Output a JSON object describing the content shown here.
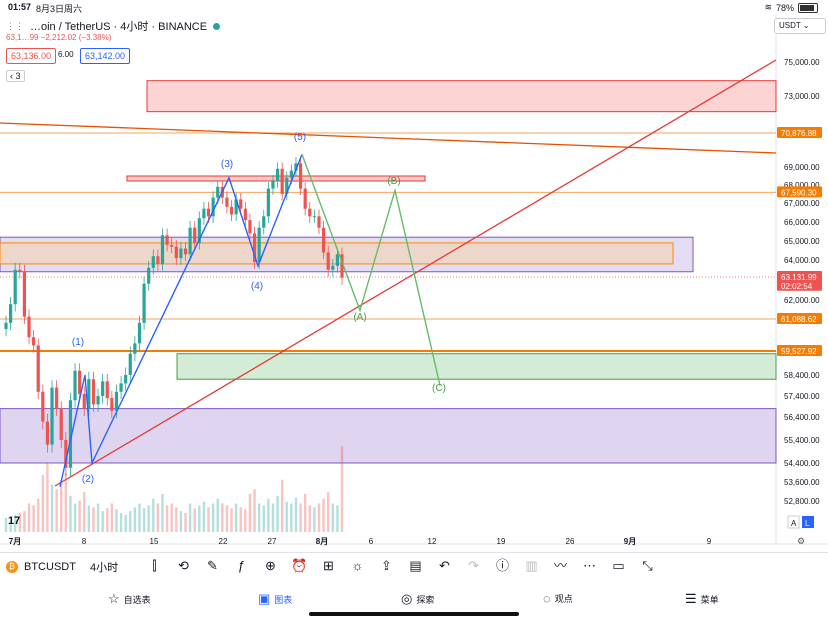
{
  "status": {
    "time": "01:57",
    "date": "8月3日周六",
    "battery": "78%"
  },
  "header": {
    "title": "…oin / TetherUS · 4小时 · BINANCE",
    "quote_line": "63,1…99  −2,212.02 (−3.38%)",
    "bid": "63,136.00",
    "spread": "6.00",
    "ask": "63,142.00",
    "layer_count": "3",
    "currency": "USDT"
  },
  "chart_data": {
    "type": "candlestick",
    "y_range": [
      52300,
      76000
    ],
    "price_ticks": [
      {
        "v": 75000,
        "label": "75,000.00"
      },
      {
        "v": 73000,
        "label": "73,000.00"
      },
      {
        "v": 69000,
        "label": "69,000.00"
      },
      {
        "v": 68000,
        "label": "68,000.00"
      },
      {
        "v": 67000,
        "label": "67,000.00"
      },
      {
        "v": 66000,
        "label": "66,000.00"
      },
      {
        "v": 65000,
        "label": "65,000.00"
      },
      {
        "v": 64000,
        "label": "64,000.00"
      },
      {
        "v": 62000,
        "label": "62,000.00"
      },
      {
        "v": 58400,
        "label": "58,400.00"
      },
      {
        "v": 57400,
        "label": "57,400.00"
      },
      {
        "v": 56400,
        "label": "56,400.00"
      },
      {
        "v": 55400,
        "label": "55,400.00"
      },
      {
        "v": 54400,
        "label": "54,400.00"
      },
      {
        "v": 53600,
        "label": "53,600.00"
      },
      {
        "v": 52800,
        "label": "52,800.00"
      }
    ],
    "price_badges": [
      {
        "v": 70876.88,
        "label": "70,876.88",
        "color": "#f57c00"
      },
      {
        "v": 67590.3,
        "label": "67,590.30",
        "color": "#f57c00"
      },
      {
        "v": 63131.99,
        "label": "63,131.99",
        "color": "#ef5350"
      },
      {
        "v": 62700,
        "label": "02:02:54",
        "color": "#ef5350"
      },
      {
        "v": 61088.62,
        "label": "61,088.62",
        "color": "#f57c00"
      },
      {
        "v": 59527.92,
        "label": "59,527.92",
        "color": "#f57c00"
      }
    ],
    "x_ticks": [
      "7月",
      "8",
      "15",
      "22",
      "27",
      "8月",
      "6",
      "12",
      "19",
      "26",
      "9月",
      "9"
    ],
    "wave_labels": [
      {
        "text": "(1)",
        "color": "#2962ff"
      },
      {
        "text": "(2)",
        "color": "#2962ff"
      },
      {
        "text": "(3)",
        "color": "#2962ff"
      },
      {
        "text": "(4)",
        "color": "#2962ff"
      },
      {
        "text": "(5)",
        "color": "#2962ff"
      },
      {
        "text": "(A)",
        "color": "#43a047"
      },
      {
        "text": "(B)",
        "color": "#43a047"
      },
      {
        "text": "(C)",
        "color": "#43a047"
      }
    ],
    "impulse_wave": [
      [
        60,
        53400
      ],
      [
        85,
        58400
      ],
      [
        92,
        54400
      ],
      [
        229,
        68400
      ],
      [
        258,
        63700
      ],
      [
        302,
        69700
      ]
    ],
    "projection_wave": [
      [
        302,
        69700
      ],
      [
        360,
        61500
      ],
      [
        395,
        67700
      ],
      [
        440,
        57900
      ]
    ],
    "closes": [
      60900,
      61800,
      63500,
      63400,
      61200,
      60200,
      59800,
      57600,
      56200,
      55200,
      57800,
      56800,
      55400,
      54200,
      57200,
      58600,
      57500,
      56800,
      58200,
      57000,
      57400,
      58100,
      57300,
      56700,
      57600,
      58000,
      58400,
      59400,
      59900,
      60900,
      62800,
      63600,
      64200,
      63800,
      65300,
      64800,
      64700,
      64100,
      64600,
      64300,
      65700,
      64900,
      66200,
      66700,
      66300,
      67300,
      67900,
      67300,
      66800,
      66400,
      67200,
      66700,
      66100,
      65400,
      63900,
      65700,
      66300,
      67800,
      68200,
      68900,
      67500,
      68400,
      68800,
      69200,
      67800,
      66700,
      66300,
      66300,
      65700,
      64400,
      63500,
      63700,
      64300,
      63100
    ],
    "volumes": [
      0.15,
      0.12,
      0.18,
      0.2,
      0.22,
      0.3,
      0.28,
      0.35,
      0.6,
      0.72,
      0.5,
      0.45,
      0.55,
      0.62,
      0.38,
      0.3,
      0.33,
      0.42,
      0.28,
      0.26,
      0.3,
      0.22,
      0.25,
      0.3,
      0.24,
      0.2,
      0.18,
      0.22,
      0.26,
      0.3,
      0.25,
      0.28,
      0.35,
      0.3,
      0.4,
      0.28,
      0.3,
      0.26,
      0.22,
      0.2,
      0.3,
      0.25,
      0.28,
      0.32,
      0.26,
      0.3,
      0.35,
      0.3,
      0.28,
      0.25,
      0.3,
      0.26,
      0.24,
      0.4,
      0.45,
      0.3,
      0.28,
      0.35,
      0.3,
      0.38,
      0.55,
      0.32,
      0.3,
      0.36,
      0.3,
      0.4,
      0.28,
      0.26,
      0.3,
      0.35,
      0.42,
      0.3,
      0.28,
      0.9
    ],
    "zones": [
      {
        "name": "red-supply-zone",
        "from": 72100,
        "to": 73900,
        "color": "red"
      },
      {
        "name": "purple-mid-zone",
        "from": 63400,
        "to": 65200,
        "color": "purple"
      },
      {
        "name": "green-demand-zone",
        "from": 58200,
        "to": 59400,
        "color": "green"
      },
      {
        "name": "purple-low-zone",
        "from": 54400,
        "to": 56800,
        "color": "purple"
      }
    ]
  },
  "toolbar": {
    "symbol": "BTCUSDT",
    "interval": "4小时"
  },
  "tabs": [
    {
      "icon": "☆",
      "label": "自选表"
    },
    {
      "icon": "▣",
      "label": "图表"
    },
    {
      "icon": "◎",
      "label": "探索"
    },
    {
      "icon": "◌",
      "label": "观点"
    },
    {
      "icon": "☰",
      "label": "菜单"
    }
  ],
  "colors": {
    "up": "#26a69a",
    "down": "#ef5350",
    "accent": "#2962ff"
  }
}
